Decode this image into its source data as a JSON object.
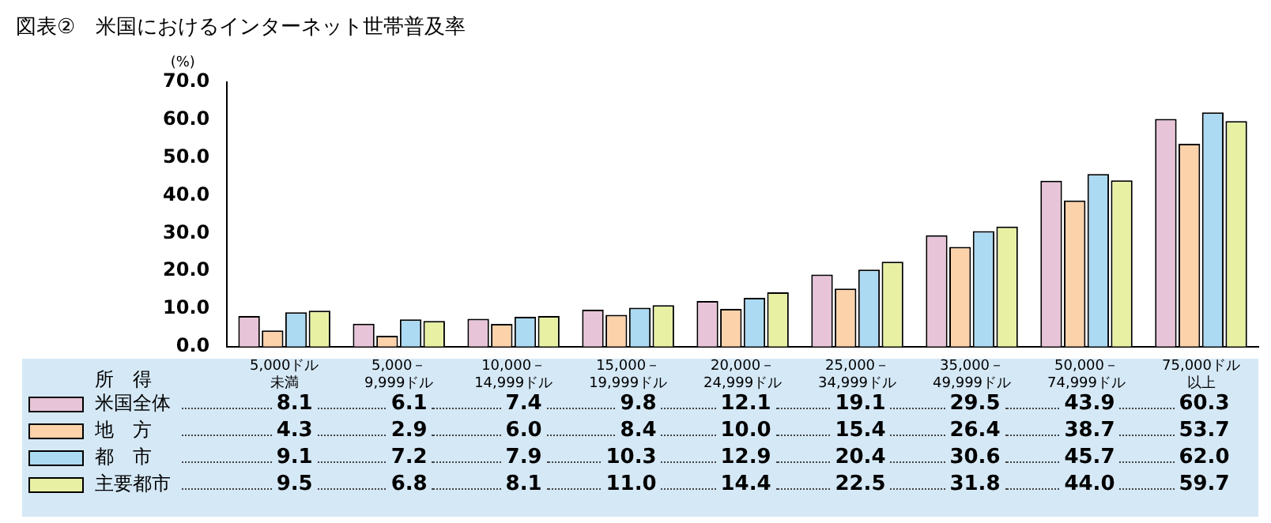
{
  "chart_data": {
    "type": "bar",
    "title": "図表②　米国におけるインターネット世帯普及率",
    "ylabel": "(%)",
    "xlabel": "所　得",
    "categories": [
      "5,000ドル未満",
      "5,000－\n9,999ドル",
      "10,000－\n14,999ドル",
      "15,000－\n19,999ドル",
      "20,000－\n24,999ドル",
      "25,000－\n34,999ドル",
      "35,000－\n49,999ドル",
      "50,000－\n74,999ドル",
      "75,000ドル以上"
    ],
    "series": [
      {
        "name": "米国全体",
        "color": "#e8c4d8",
        "values": [
          8.1,
          6.1,
          7.4,
          9.8,
          12.1,
          19.1,
          29.5,
          43.9,
          60.3
        ],
        "value_labels": [
          "8.1",
          "6.1",
          "7.4",
          "9.8",
          "12.1",
          "19.1",
          "29.5",
          "43.9",
          "60.3"
        ]
      },
      {
        "name": "地　方",
        "color": "#fcd2aa",
        "values": [
          4.3,
          2.9,
          6.0,
          8.4,
          10.0,
          15.4,
          26.4,
          38.7,
          53.7
        ],
        "value_labels": [
          "4.3",
          "2.9",
          "6.0",
          "8.4",
          "10.0",
          "15.4",
          "26.4",
          "38.7",
          "53.7"
        ]
      },
      {
        "name": "都　市",
        "color": "#acdaf2",
        "values": [
          9.1,
          7.2,
          7.9,
          10.3,
          12.9,
          20.4,
          30.6,
          45.7,
          62.0
        ],
        "value_labels": [
          "9.1",
          "7.2",
          "7.9",
          "10.3",
          "12.9",
          "20.4",
          "30.6",
          "45.7",
          "62.0"
        ]
      },
      {
        "name": "主要都市",
        "color": "#e8f0a4",
        "values": [
          9.5,
          6.8,
          8.1,
          11.0,
          14.4,
          22.5,
          31.8,
          44.0,
          59.7
        ],
        "value_labels": [
          "9.5",
          "6.8",
          "8.1",
          "11.0",
          "14.4",
          "22.5",
          "31.8",
          "44.0",
          "59.7"
        ]
      }
    ],
    "ylim": [
      0,
      70
    ],
    "yticks": [
      {
        "value": 0,
        "label": "0.0"
      },
      {
        "value": 10,
        "label": "10.0"
      },
      {
        "value": 20,
        "label": "20.0"
      },
      {
        "value": 30,
        "label": "30.0"
      },
      {
        "value": 40,
        "label": "40.0"
      },
      {
        "value": 50,
        "label": "50.0"
      },
      {
        "value": 60,
        "label": "60.0"
      },
      {
        "value": 70,
        "label": "70.0"
      }
    ],
    "grid": false,
    "legend": "bottom"
  }
}
